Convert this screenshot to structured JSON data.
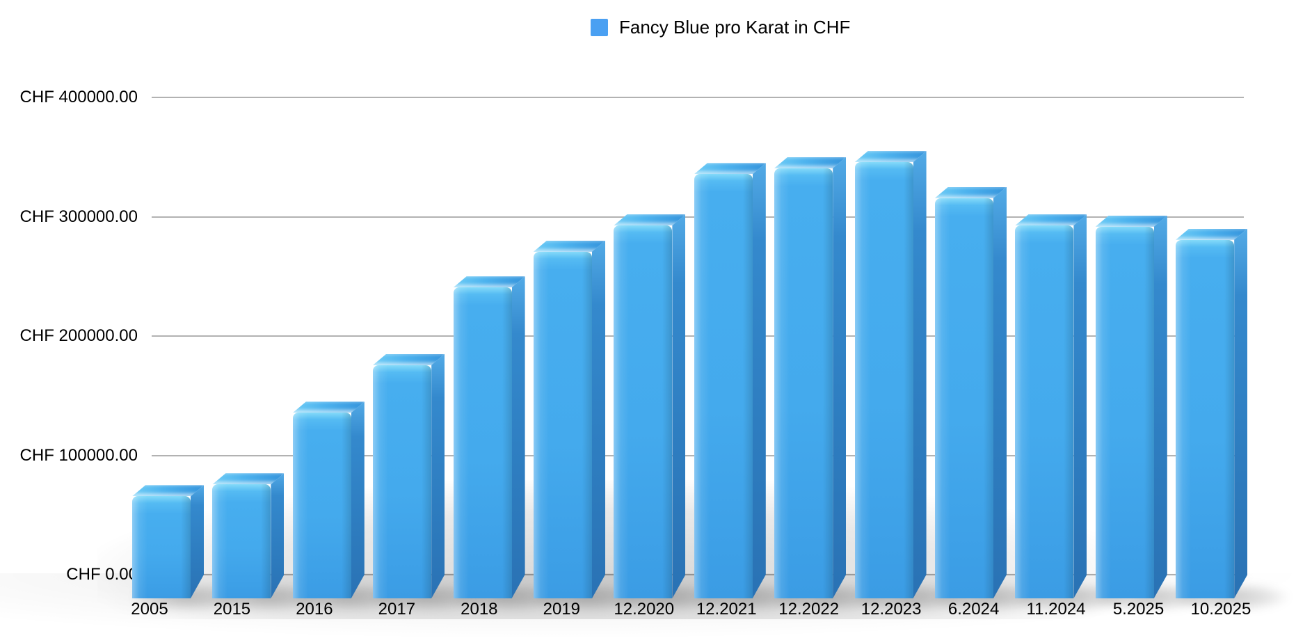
{
  "legend": {
    "label": "Fancy Blue pro Karat in CHF",
    "swatch_color": "#4aa0f2"
  },
  "chart_data": {
    "type": "bar",
    "style": "3d",
    "title": "",
    "xlabel": "",
    "ylabel": "",
    "currency": "CHF",
    "grid": true,
    "legend_position": "top-center",
    "legend_entries": [
      "Fancy Blue pro Karat in CHF"
    ],
    "categories": [
      "2005",
      "2015",
      "2016",
      "2017",
      "2018",
      "2019",
      "12.2020",
      "12.2021",
      "12.2022",
      "12.2023",
      "6.2024",
      "11.2024",
      "5.2025",
      "10.2025"
    ],
    "series": [
      {
        "name": "Fancy Blue pro Karat in CHF",
        "color": "#45abee",
        "values": [
          75000,
          85000,
          145000,
          185000,
          250000,
          280000,
          302000,
          345000,
          350000,
          355000,
          325000,
          302000,
          301000,
          290000
        ]
      }
    ],
    "ylim": [
      0,
      430000
    ],
    "y_ticks": [
      {
        "label": "CHF 0.00",
        "value": 0
      },
      {
        "label": "CHF 100000.00",
        "value": 100000
      },
      {
        "label": "CHF 200000.00",
        "value": 200000
      },
      {
        "label": "CHF 300000.00",
        "value": 300000
      },
      {
        "label": "CHF 400000.00",
        "value": 400000
      }
    ]
  }
}
